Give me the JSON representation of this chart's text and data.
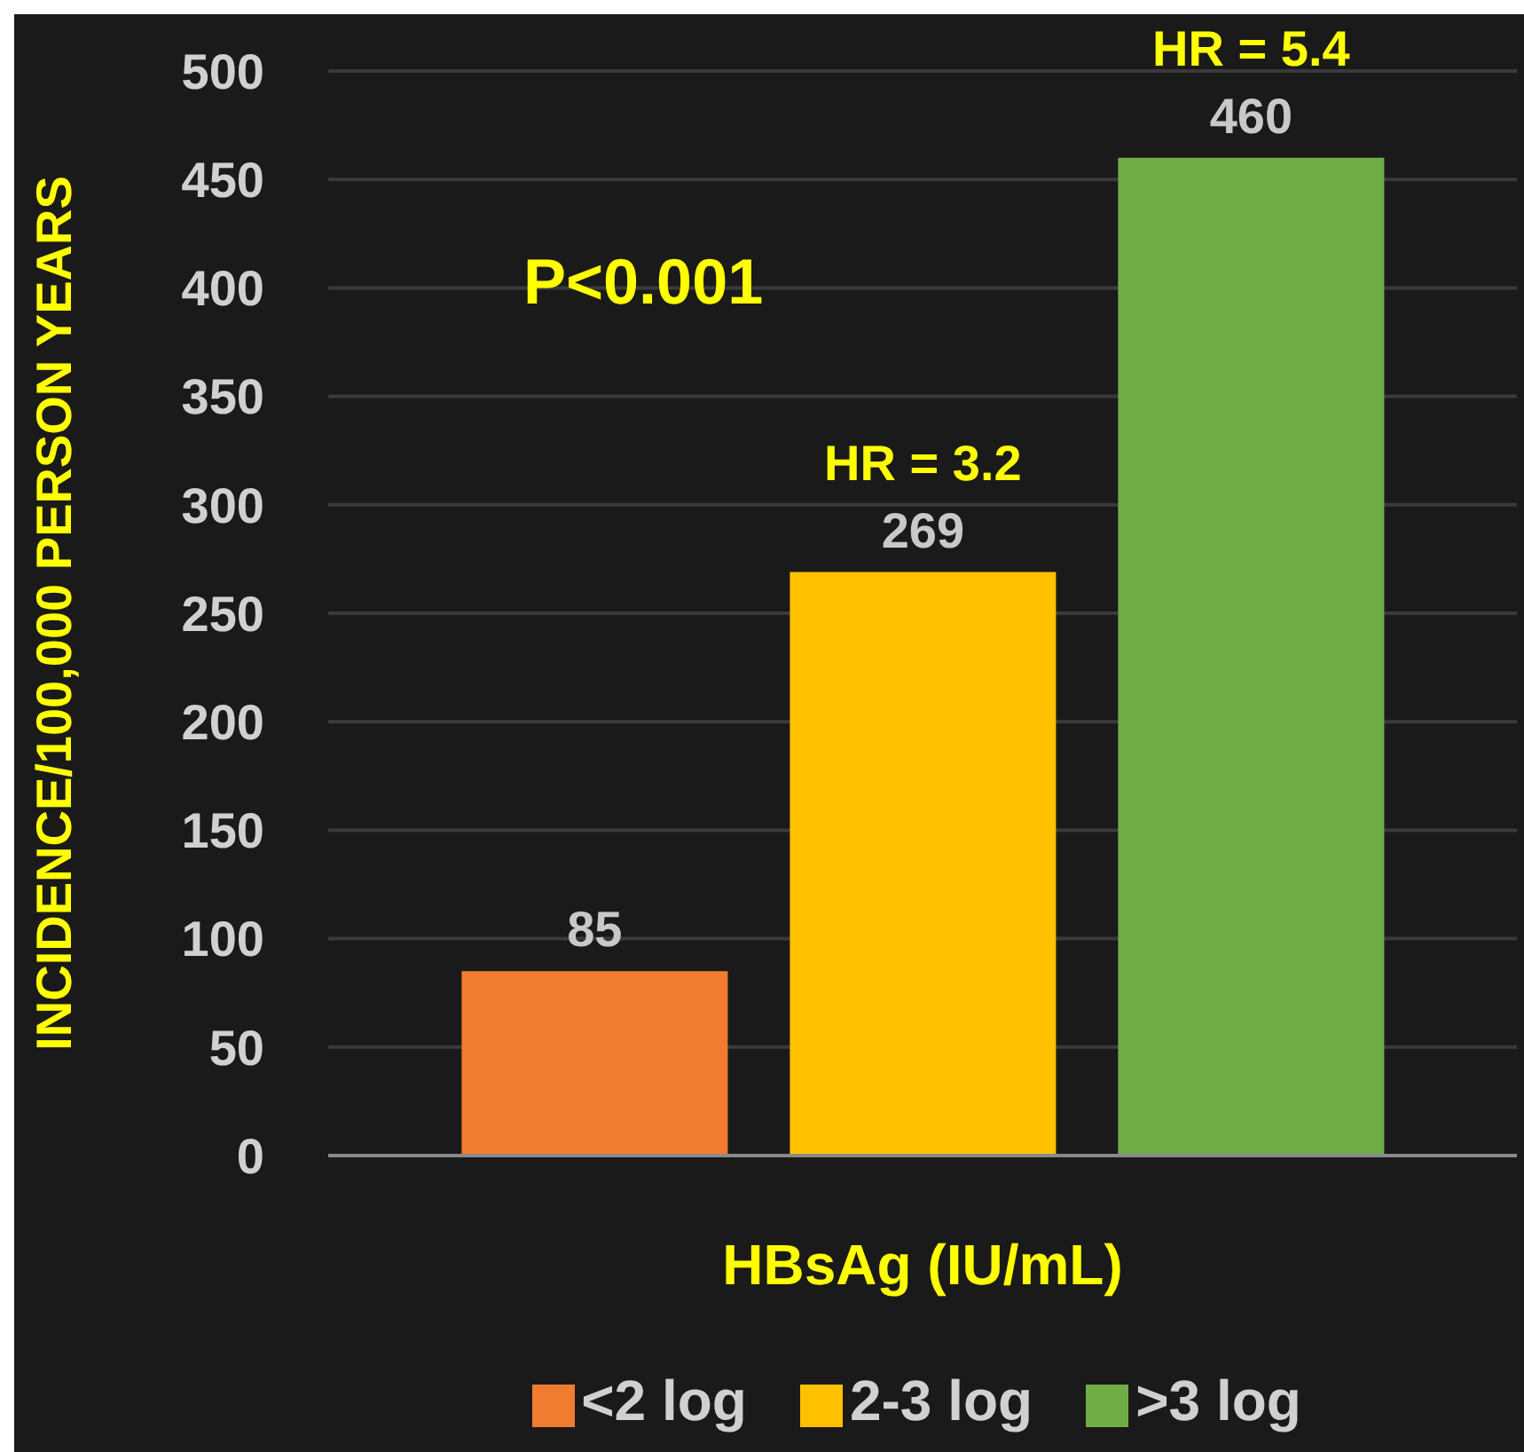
{
  "chart_data": {
    "type": "bar",
    "xlabel": "HBsAg (IU/mL)",
    "ylabel": "INCIDENCE/100,000 PERSON YEARS",
    "categories": [
      null
    ],
    "series": [
      {
        "name": "<2 log",
        "color": "#f07d2f",
        "values": [
          85
        ]
      },
      {
        "name": "2-3 log",
        "color": "#ffc000",
        "values": [
          269
        ]
      },
      {
        "name": ">3 log",
        "color": "#70ad47",
        "values": [
          460
        ]
      }
    ],
    "ylim": [
      0,
      500
    ],
    "yticks": [
      0,
      50,
      100,
      150,
      200,
      250,
      300,
      350,
      400,
      450,
      500
    ],
    "grid": "y",
    "legend": "bottom",
    "data_labels": true,
    "annotations": [
      "P<0.001",
      {
        "text": "HR = 3.2",
        "y": 269
      },
      {
        "text": "HR = 5.4",
        "y": 460
      }
    ]
  }
}
